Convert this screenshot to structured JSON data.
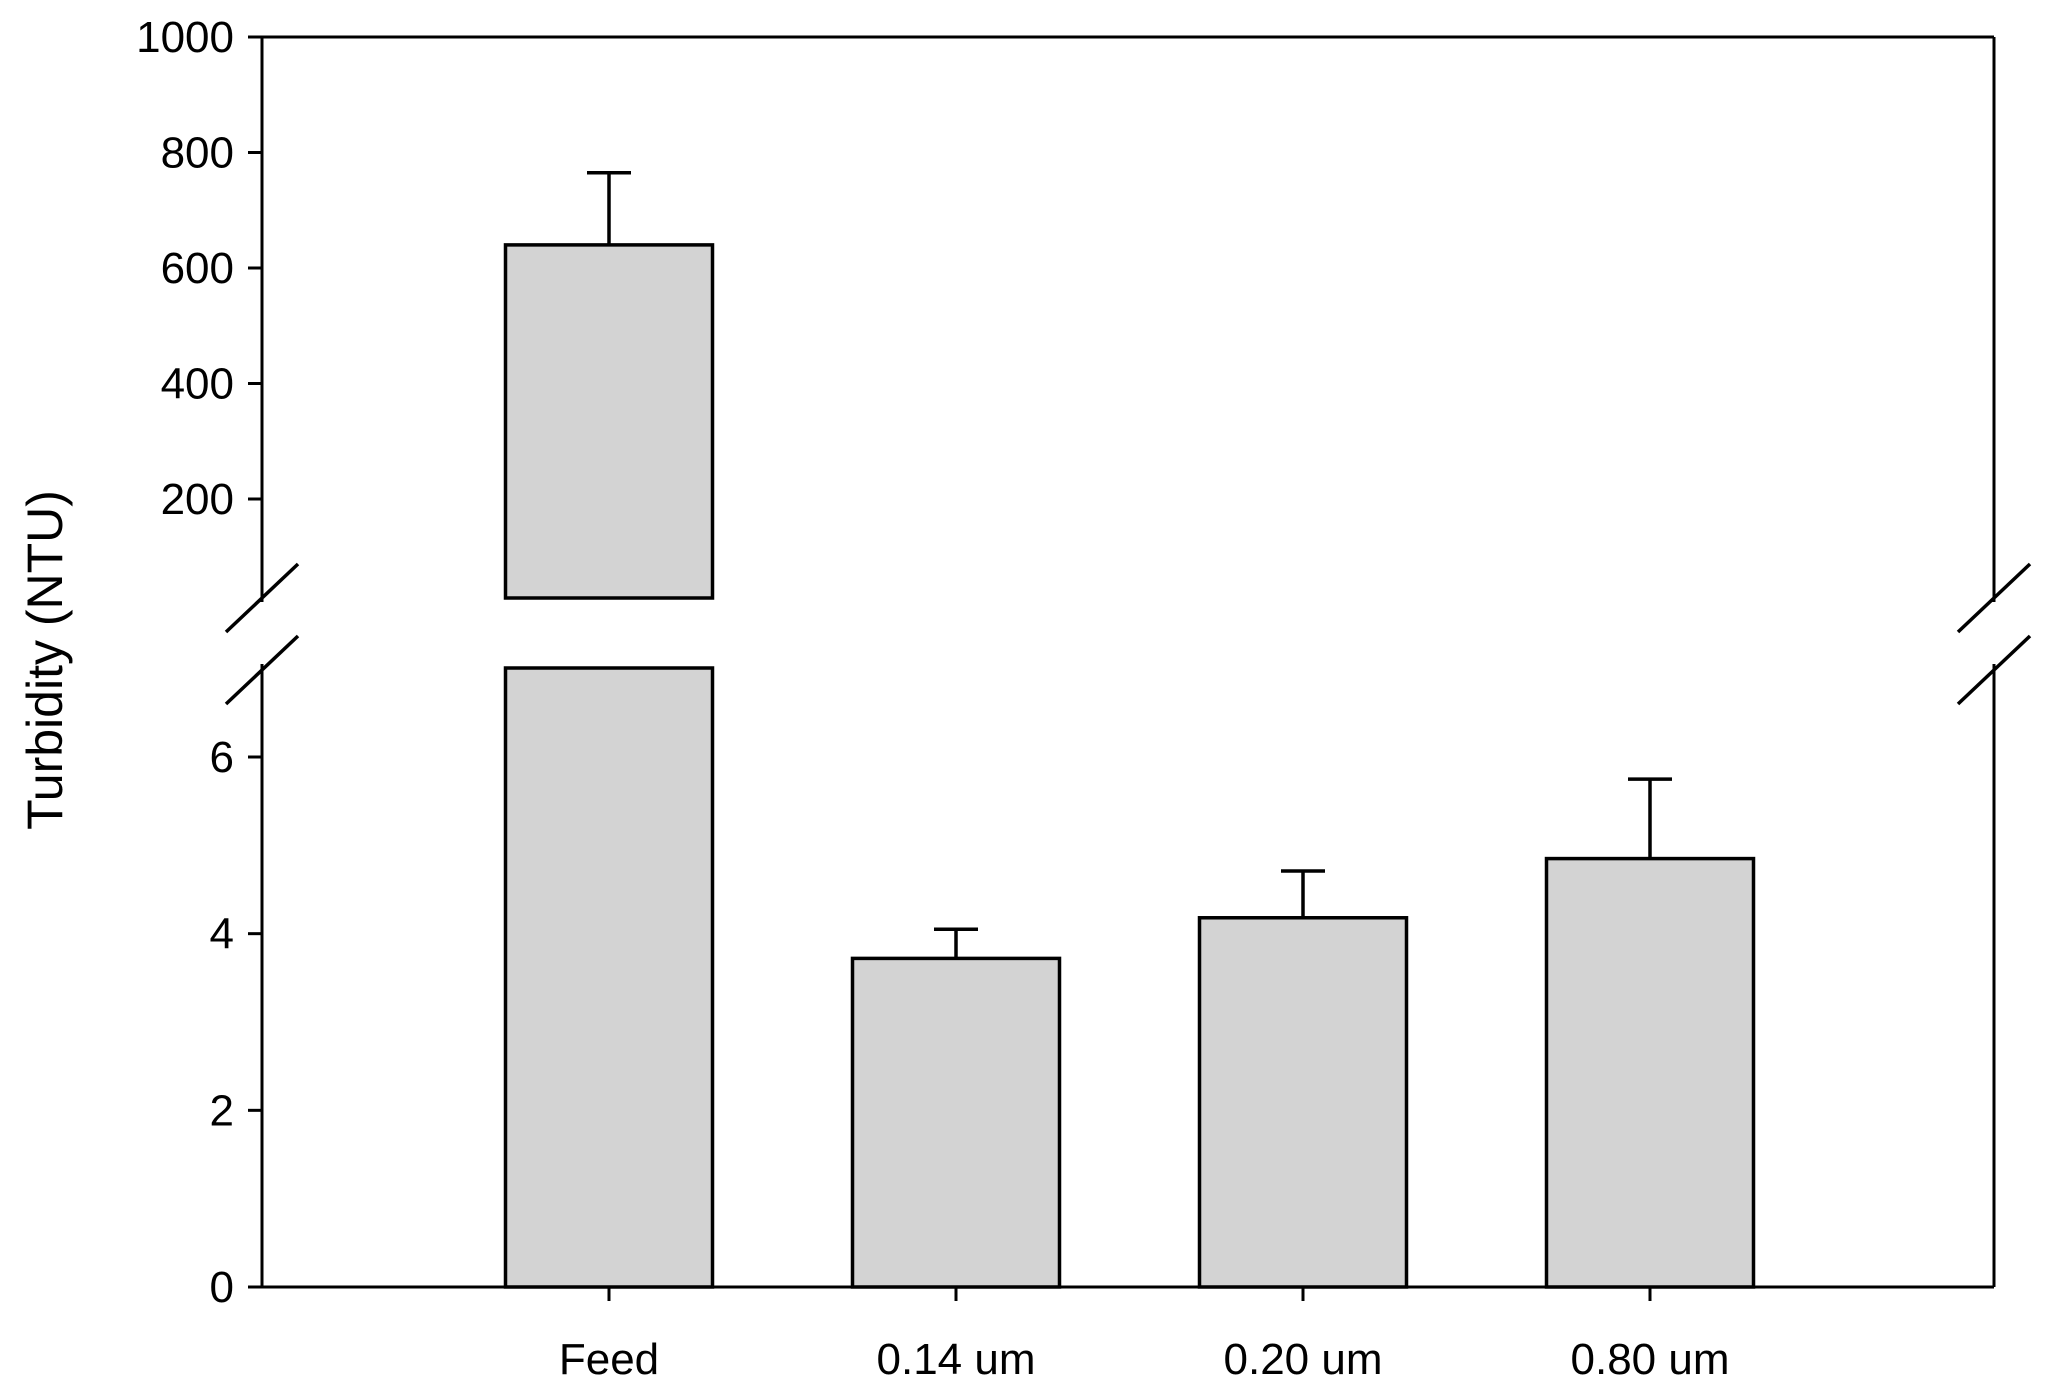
{
  "chart_data": {
    "type": "bar",
    "title": "",
    "xlabel": "",
    "ylabel": "Turbidity (NTU)",
    "broken_axis": true,
    "lower_segment": {
      "ylim": [
        0,
        7
      ],
      "ticks": [
        0,
        2,
        4,
        6
      ]
    },
    "upper_segment": {
      "ylim": [
        0,
        1000
      ],
      "ticks": [
        200,
        400,
        600,
        800,
        1000
      ]
    },
    "categories": [
      "Feed",
      "0.14 um",
      "0.20 um",
      "0.80 um"
    ],
    "series": [
      {
        "values": [
          640,
          3.72,
          4.18,
          4.85
        ],
        "error_plus": [
          125,
          0.33,
          0.53,
          0.9
        ]
      }
    ],
    "bar_color": "#d3d3d3",
    "grid": false
  },
  "labels": {
    "ylabel": "Turbidity (NTU)"
  }
}
